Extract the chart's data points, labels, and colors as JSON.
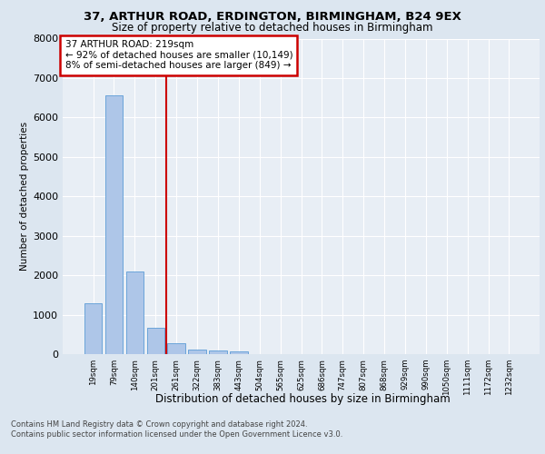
{
  "title1": "37, ARTHUR ROAD, ERDINGTON, BIRMINGHAM, B24 9EX",
  "title2": "Size of property relative to detached houses in Birmingham",
  "xlabel": "Distribution of detached houses by size in Birmingham",
  "ylabel": "Number of detached properties",
  "footer1": "Contains HM Land Registry data © Crown copyright and database right 2024.",
  "footer2": "Contains public sector information licensed under the Open Government Licence v3.0.",
  "annotation_title": "37 ARTHUR ROAD: 219sqm",
  "annotation_line1": "← 92% of detached houses are smaller (10,149)",
  "annotation_line2": "8% of semi-detached houses are larger (849) →",
  "bar_categories": [
    "19sqm",
    "79sqm",
    "140sqm",
    "201sqm",
    "261sqm",
    "322sqm",
    "383sqm",
    "443sqm",
    "504sqm",
    "565sqm",
    "625sqm",
    "686sqm",
    "747sqm",
    "807sqm",
    "868sqm",
    "929sqm",
    "990sqm",
    "1050sqm",
    "1111sqm",
    "1172sqm",
    "1232sqm"
  ],
  "bar_values": [
    1300,
    6550,
    2100,
    660,
    280,
    120,
    90,
    75,
    0,
    0,
    0,
    0,
    0,
    0,
    0,
    0,
    0,
    0,
    0,
    0,
    0
  ],
  "bar_color": "#aec6e8",
  "bar_edge_color": "#5b9bd5",
  "vline_pos": 3.5,
  "vline_color": "#cc0000",
  "annotation_box_color": "#cc0000",
  "background_color": "#dce6f0",
  "plot_bg_color": "#e8eef5",
  "ylim": [
    0,
    8000
  ],
  "yticks": [
    0,
    1000,
    2000,
    3000,
    4000,
    5000,
    6000,
    7000,
    8000
  ]
}
